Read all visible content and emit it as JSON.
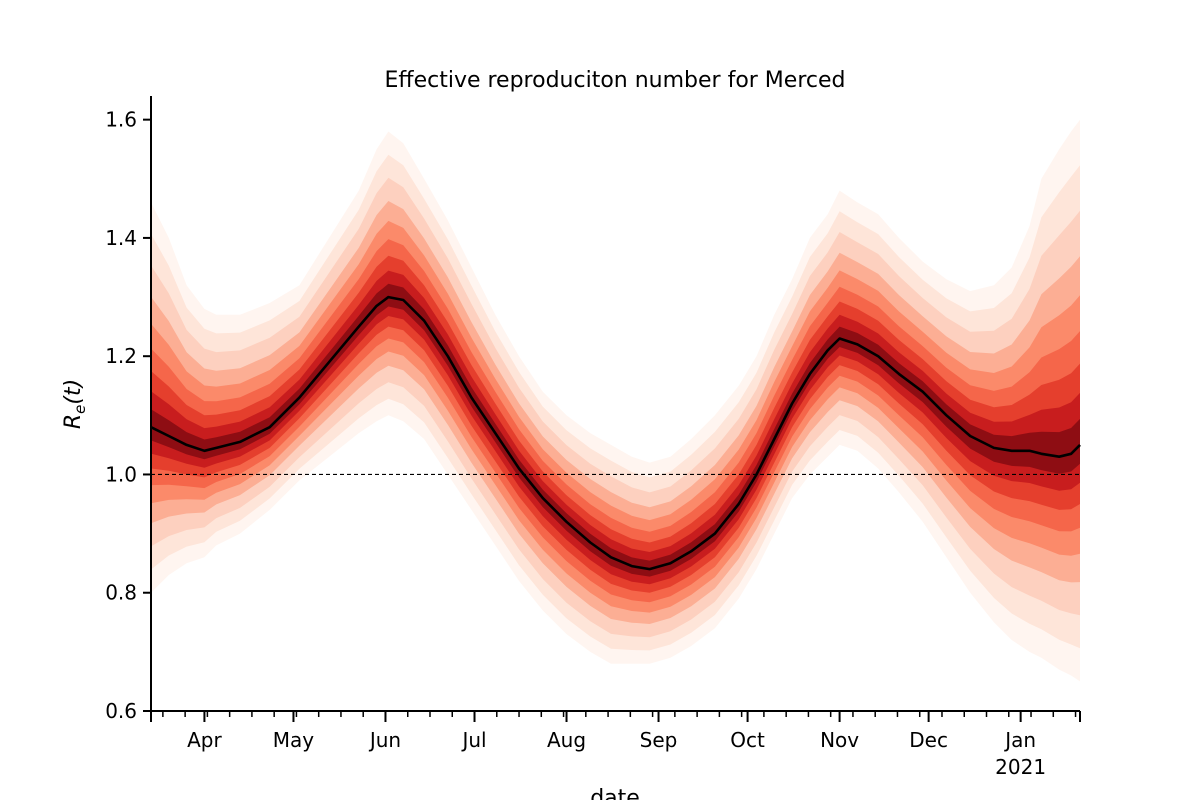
{
  "chart_data": {
    "type": "line",
    "title": "Effective reproduciton number for Merced",
    "xlabel": "date",
    "ylabel_main": "R",
    "ylabel_sub": "e",
    "ylabel_arg": "(t)",
    "ylim": [
      0.6,
      1.64
    ],
    "xlim_days": [
      0,
      313
    ],
    "x_ticks_major": [
      {
        "label": "Apr",
        "day": 18,
        "year": ""
      },
      {
        "label": "May",
        "day": 48,
        "year": ""
      },
      {
        "label": "Jun",
        "day": 79,
        "year": ""
      },
      {
        "label": "Jul",
        "day": 109,
        "year": ""
      },
      {
        "label": "Aug",
        "day": 140,
        "year": ""
      },
      {
        "label": "Sep",
        "day": 171,
        "year": ""
      },
      {
        "label": "Oct",
        "day": 201,
        "year": ""
      },
      {
        "label": "Nov",
        "day": 232,
        "year": ""
      },
      {
        "label": "Dec",
        "day": 262,
        "year": ""
      },
      {
        "label": "Jan",
        "day": 293,
        "year": "2021"
      }
    ],
    "y_ticks": [
      {
        "value": 0.6,
        "label": "0.6"
      },
      {
        "value": 0.8,
        "label": "0.8"
      },
      {
        "value": 1.0,
        "label": "1.0"
      },
      {
        "value": 1.2,
        "label": "1.2"
      },
      {
        "value": 1.4,
        "label": "1.4"
      },
      {
        "value": 1.6,
        "label": "1.6"
      }
    ],
    "reference_line": {
      "y": 1.0,
      "style": "dashed"
    },
    "series": [
      {
        "name": "median R_e(t)",
        "x_day": [
          0,
          6,
          12,
          18,
          22,
          30,
          40,
          50,
          60,
          70,
          76,
          80,
          85,
          92,
          100,
          108,
          116,
          124,
          132,
          140,
          148,
          155,
          162,
          168,
          175,
          182,
          190,
          198,
          204,
          210,
          216,
          222,
          228,
          232,
          238,
          245,
          252,
          260,
          268,
          276,
          284,
          290,
          296,
          300,
          306,
          310,
          313
        ],
        "median": [
          1.08,
          1.065,
          1.05,
          1.04,
          1.045,
          1.055,
          1.08,
          1.13,
          1.19,
          1.25,
          1.285,
          1.3,
          1.295,
          1.26,
          1.2,
          1.13,
          1.07,
          1.01,
          0.96,
          0.92,
          0.885,
          0.86,
          0.845,
          0.84,
          0.85,
          0.87,
          0.9,
          0.95,
          1.0,
          1.06,
          1.12,
          1.17,
          1.21,
          1.23,
          1.22,
          1.2,
          1.17,
          1.14,
          1.1,
          1.065,
          1.045,
          1.04,
          1.04,
          1.035,
          1.03,
          1.035,
          1.05
        ],
        "lower_95": [
          0.8,
          0.83,
          0.85,
          0.86,
          0.88,
          0.9,
          0.94,
          0.99,
          1.03,
          1.07,
          1.09,
          1.1,
          1.09,
          1.06,
          1.0,
          0.94,
          0.88,
          0.82,
          0.77,
          0.73,
          0.7,
          0.68,
          0.68,
          0.68,
          0.69,
          0.71,
          0.74,
          0.79,
          0.84,
          0.9,
          0.96,
          1.0,
          1.03,
          1.05,
          1.04,
          1.01,
          0.97,
          0.92,
          0.86,
          0.8,
          0.75,
          0.72,
          0.7,
          0.69,
          0.67,
          0.66,
          0.65
        ],
        "upper_95": [
          1.46,
          1.4,
          1.32,
          1.28,
          1.27,
          1.27,
          1.29,
          1.32,
          1.4,
          1.48,
          1.55,
          1.58,
          1.56,
          1.5,
          1.43,
          1.35,
          1.27,
          1.2,
          1.14,
          1.1,
          1.07,
          1.05,
          1.03,
          1.02,
          1.03,
          1.06,
          1.1,
          1.15,
          1.2,
          1.27,
          1.33,
          1.4,
          1.44,
          1.48,
          1.46,
          1.44,
          1.4,
          1.36,
          1.33,
          1.31,
          1.32,
          1.35,
          1.42,
          1.5,
          1.55,
          1.58,
          1.6
        ]
      }
    ],
    "colors": {
      "median": "#000000",
      "band": "#de2d26",
      "band_light": "#fee0d2"
    }
  }
}
